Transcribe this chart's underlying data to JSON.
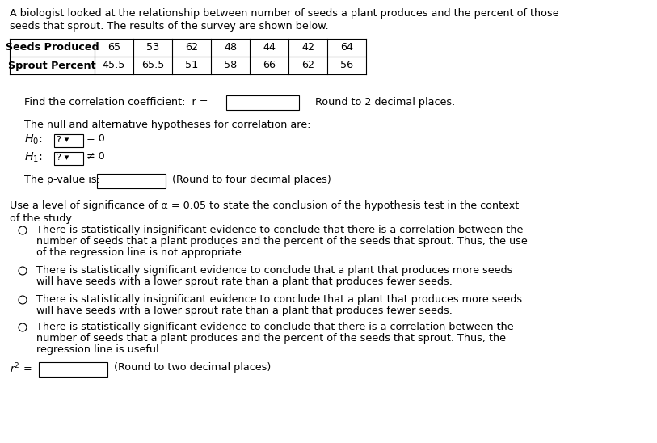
{
  "title_line1": "A biologist looked at the relationship between number of seeds a plant produces and the percent of those",
  "title_line2": "seeds that sprout. The results of the survey are shown below.",
  "table_header": [
    "Seeds Produced",
    "Sprout Percent"
  ],
  "table_col1": [
    65,
    53,
    62,
    48,
    44,
    42,
    64
  ],
  "table_col2": [
    45.5,
    65.5,
    51,
    58,
    66,
    62,
    56
  ],
  "find_r_text": "Find the correlation coefficient:  r =",
  "round_r_text": "Round to 2 decimal places.",
  "null_alt_text": "The null and alternative hypotheses for correlation are:",
  "pvalue_text": "The p-value is:",
  "pvalue_round": "(Round to four decimal places)",
  "alpha_text": "Use a level of significance of α = 0.05 to state the conclusion of the hypothesis test in the context",
  "alpha_text2": "of the study.",
  "option1_line1": "There is statistically insignificant evidence to conclude that there is a correlation between the",
  "option1_line2": "number of seeds that a plant produces and the percent of the seeds that sprout. Thus, the use",
  "option1_line3": "of the regression line is not appropriate.",
  "option2_line1": "There is statistically significant evidence to conclude that a plant that produces more seeds",
  "option2_line2": "will have seeds with a lower sprout rate than a plant that produces fewer seeds.",
  "option3_line1": "There is statistically insignificant evidence to conclude that a plant that produces more seeds",
  "option3_line2": "will have seeds with a lower sprout rate than a plant that produces fewer seeds.",
  "option4_line1": "There is statistically significant evidence to conclude that there is a correlation between the",
  "option4_line2": "number of seeds that a plant produces and the percent of the seeds that sprout. Thus, the",
  "option4_line3": "regression line is useful.",
  "r2_round": "(Round to two decimal places)",
  "bg_color": "#ffffff",
  "text_color": "#000000",
  "font_size": 9.2
}
